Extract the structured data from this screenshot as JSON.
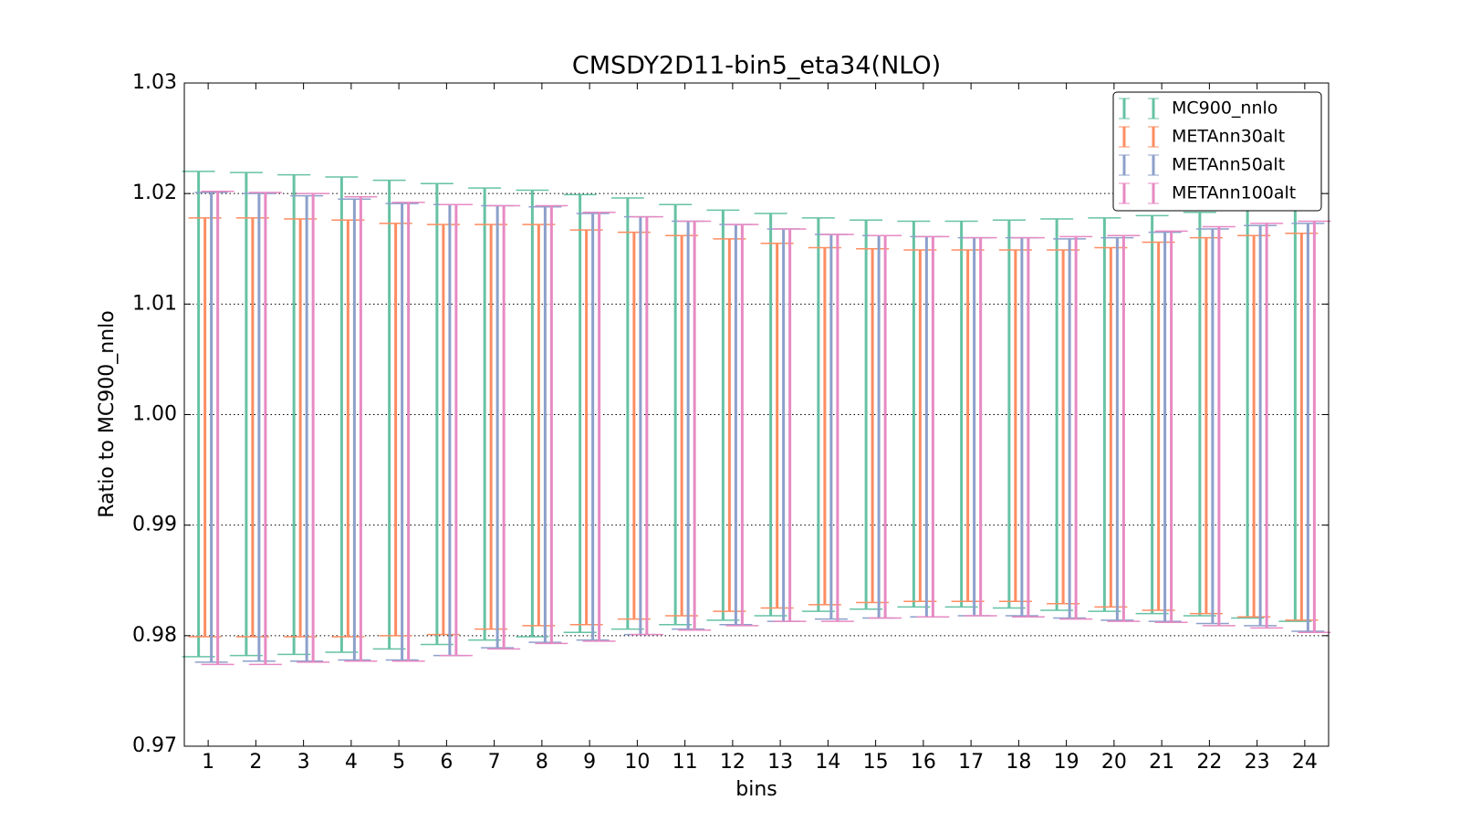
{
  "chart_data": {
    "type": "errorbar",
    "title": "CMSDY2D11-bin5_eta34(NLO)",
    "x_label": "bins",
    "y_label": "Ratio to MC900_nnlo",
    "categories": [
      "1",
      "2",
      "3",
      "4",
      "5",
      "6",
      "7",
      "8",
      "9",
      "10",
      "11",
      "12",
      "13",
      "14",
      "15",
      "16",
      "17",
      "18",
      "19",
      "20",
      "21",
      "22",
      "23",
      "24"
    ],
    "ylim": [
      0.97,
      1.03
    ],
    "yticks": [
      0.97,
      0.98,
      0.99,
      {
        "value": 1,
        "label": "1.00"
      },
      1.01,
      1.02,
      1.03
    ],
    "grid": true,
    "legend": "upper right",
    "series": [
      {
        "name": "MC900_nnlo",
        "color": "#66c2a5",
        "lower": [
          0.9781,
          0.9782,
          0.9783,
          0.9785,
          0.9788,
          0.9792,
          0.9796,
          0.9799,
          0.9803,
          0.9806,
          0.981,
          0.9814,
          0.9818,
          0.9822,
          0.9824,
          0.9826,
          0.9826,
          0.9825,
          0.9823,
          0.9822,
          0.982,
          0.9818,
          0.9816,
          0.9813
        ],
        "upper": [
          1.022,
          1.0219,
          1.0217,
          1.0215,
          1.0212,
          1.0209,
          1.0205,
          1.0203,
          1.0199,
          1.0196,
          1.019,
          1.0185,
          1.0182,
          1.0178,
          1.0176,
          1.0175,
          1.0175,
          1.0176,
          1.0177,
          1.0178,
          1.018,
          1.0183,
          1.0185,
          1.0186
        ]
      },
      {
        "name": "METAnn30alt",
        "color": "#fc8d62",
        "lower": [
          0.9799,
          0.9799,
          0.9799,
          0.9799,
          0.98,
          0.9801,
          0.9806,
          0.9809,
          0.981,
          0.9815,
          0.9818,
          0.9822,
          0.9825,
          0.9828,
          0.983,
          0.9831,
          0.9831,
          0.9831,
          0.9829,
          0.9826,
          0.9823,
          0.982,
          0.9817,
          0.9814
        ],
        "upper": [
          1.0178,
          1.0178,
          1.0177,
          1.0176,
          1.0173,
          1.0172,
          1.0172,
          1.0172,
          1.0167,
          1.0165,
          1.0162,
          1.0159,
          1.0155,
          1.0151,
          1.015,
          1.0149,
          1.0149,
          1.0149,
          1.0149,
          1.0151,
          1.0156,
          1.016,
          1.0162,
          1.0164
        ]
      },
      {
        "name": "METAnn50alt",
        "color": "#8da0cb",
        "lower": [
          0.9776,
          0.9777,
          0.9777,
          0.9778,
          0.9778,
          0.9782,
          0.9789,
          0.9794,
          0.9796,
          0.9801,
          0.9806,
          0.981,
          0.9813,
          0.9815,
          0.9816,
          0.9817,
          0.9818,
          0.9818,
          0.9816,
          0.9814,
          0.9813,
          0.9811,
          0.9809,
          0.9804
        ],
        "upper": [
          1.0201,
          1.02,
          1.0198,
          1.0195,
          1.0191,
          1.019,
          1.0189,
          1.0188,
          1.0182,
          1.0179,
          1.0175,
          1.0172,
          1.0168,
          1.0163,
          1.0162,
          1.0161,
          1.016,
          1.016,
          1.0159,
          1.016,
          1.0165,
          1.0168,
          1.0171,
          1.0173
        ]
      },
      {
        "name": "METAnn100alt",
        "color": "#e78ac3",
        "lower": [
          0.9774,
          0.9774,
          0.9776,
          0.9777,
          0.9777,
          0.9782,
          0.9788,
          0.9793,
          0.9795,
          0.9801,
          0.9805,
          0.9809,
          0.9813,
          0.9813,
          0.9816,
          0.9817,
          0.9818,
          0.9817,
          0.9815,
          0.9813,
          0.9812,
          0.9809,
          0.9807,
          0.9803
        ],
        "upper": [
          1.0202,
          1.0201,
          1.02,
          1.0197,
          1.0192,
          1.019,
          1.0189,
          1.0189,
          1.0183,
          1.0179,
          1.0175,
          1.0172,
          1.0168,
          1.0163,
          1.0162,
          1.0161,
          1.016,
          1.016,
          1.0161,
          1.0162,
          1.0166,
          1.017,
          1.0173,
          1.0175
        ]
      }
    ]
  }
}
